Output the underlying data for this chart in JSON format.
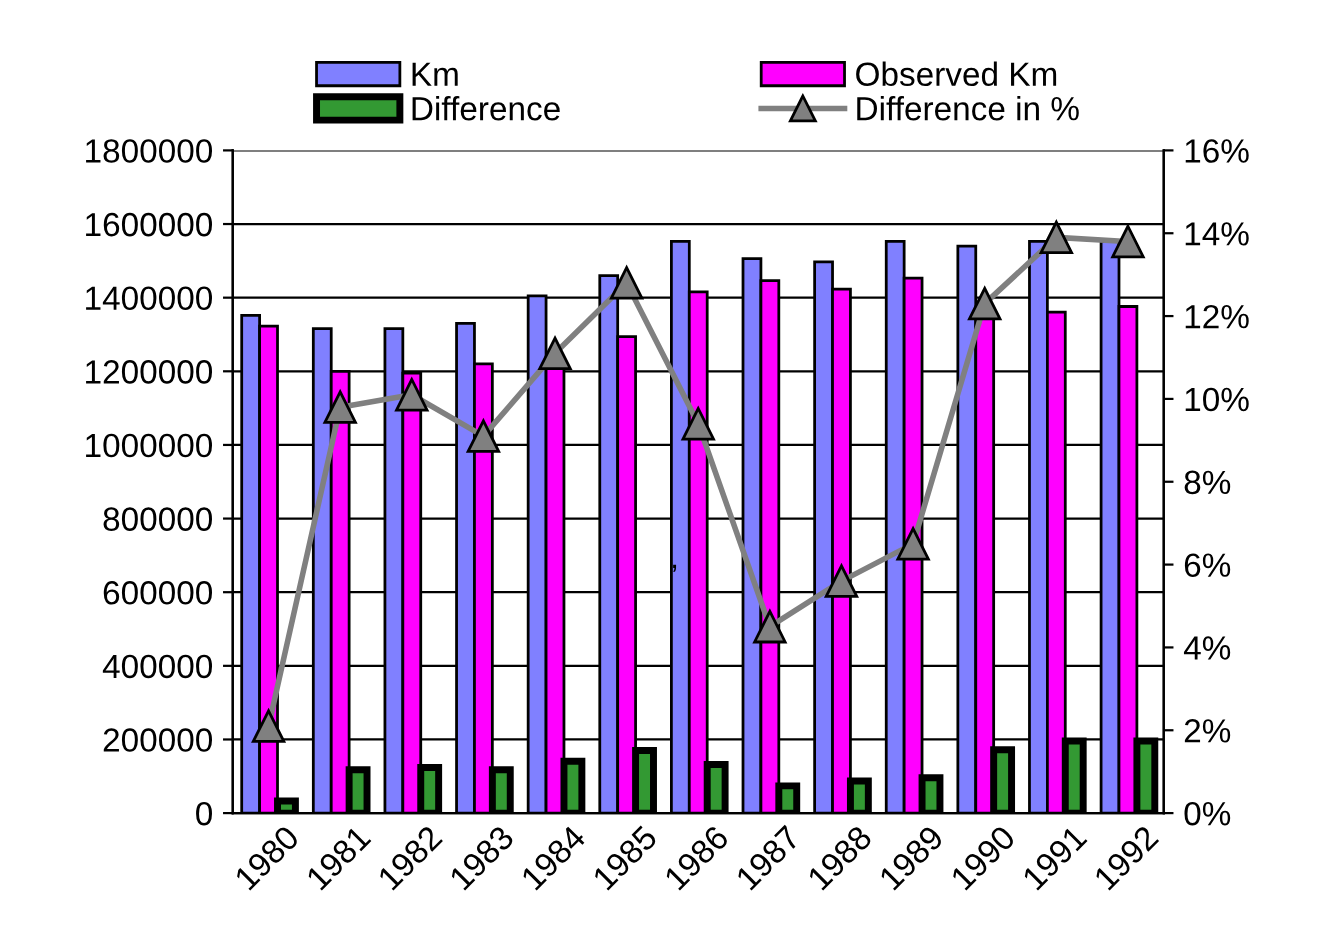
{
  "chart_data": {
    "type": "bar",
    "categories": [
      "1980",
      "1981",
      "1982",
      "1983",
      "1984",
      "1985",
      "1986",
      "1987",
      "1988",
      "1989",
      "1990",
      "1991",
      "1992"
    ],
    "series": [
      {
        "name": "Km",
        "color": "#8080ff",
        "values": [
          1352000,
          1316000,
          1316000,
          1330000,
          1405000,
          1460000,
          1553000,
          1506000,
          1497000,
          1553000,
          1540000,
          1553000,
          1553000
        ]
      },
      {
        "name": "Observed Km",
        "color": "#ff00ff",
        "values": [
          1323000,
          1200000,
          1195000,
          1220000,
          1211000,
          1294000,
          1416000,
          1446000,
          1423000,
          1453000,
          1350000,
          1361000,
          1376000
        ]
      },
      {
        "name": "Difference",
        "color": "#339933",
        "values": [
          33000,
          118000,
          124000,
          118000,
          141000,
          170000,
          132000,
          74000,
          87000,
          96000,
          172000,
          196000,
          196000
        ]
      },
      {
        "name": "Difference in %",
        "color": "#808080",
        "type": "line",
        "axis": "y2",
        "marker": "triangle",
        "values": [
          2.1,
          9.8,
          10.1,
          9.1,
          11.1,
          12.8,
          9.4,
          4.5,
          5.6,
          6.5,
          12.3,
          13.9,
          13.8
        ]
      }
    ],
    "ylim": [
      0,
      1800000
    ],
    "yticks": [
      0,
      200000,
      400000,
      600000,
      800000,
      1000000,
      1200000,
      1400000,
      1600000,
      1800000
    ],
    "y2lim": [
      0,
      16
    ],
    "y2ticks": [
      {
        "value": 0,
        "label": "0%"
      },
      {
        "value": 2,
        "label": "2%"
      },
      {
        "value": 4,
        "label": "4%"
      },
      {
        "value": 6,
        "label": "6%"
      },
      {
        "value": 8,
        "label": "8%"
      },
      {
        "value": 10,
        "label": "10%"
      },
      {
        "value": 12,
        "label": "12%"
      },
      {
        "value": 14,
        "label": "14%"
      },
      {
        "value": 16,
        "label": "16%"
      }
    ],
    "annotations": [
      ","
    ],
    "grid": "y",
    "legend": "top"
  }
}
